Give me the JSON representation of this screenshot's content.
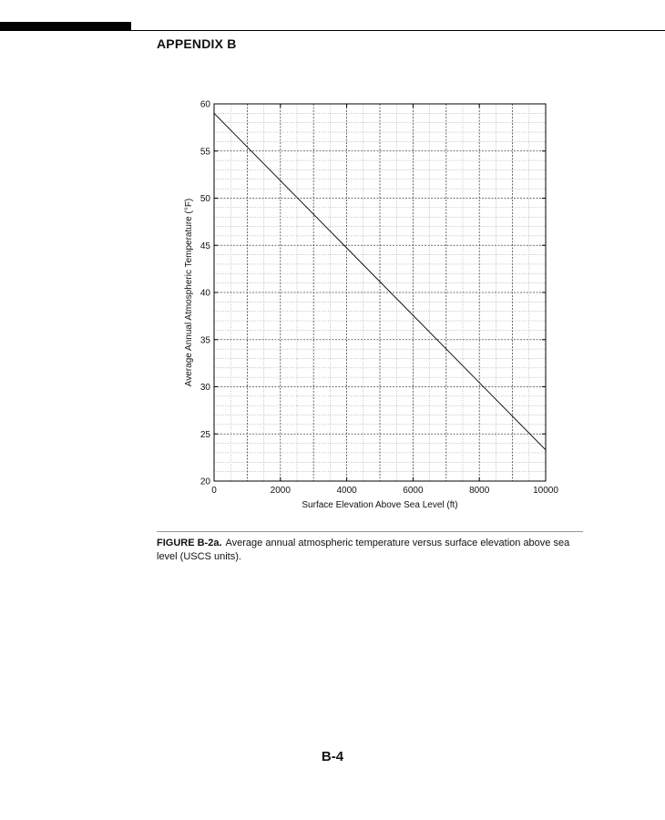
{
  "header": {
    "section_title": "APPENDIX B"
  },
  "chart_data": {
    "type": "line",
    "xlabel": "Surface Elevation Above Sea Level (ft)",
    "ylabel": "Average Annual Atmospheric Temperature (°F)",
    "xlim": [
      0,
      10000
    ],
    "ylim": [
      20,
      60
    ],
    "x_ticks": [
      0,
      2000,
      4000,
      6000,
      8000,
      10000
    ],
    "y_ticks": [
      20,
      25,
      30,
      35,
      40,
      45,
      50,
      55,
      60
    ],
    "x_minor_step": 500,
    "y_minor_step": 1,
    "grid": true,
    "series": [
      {
        "x": [
          0,
          10000
        ],
        "y": [
          59,
          23.3
        ]
      }
    ]
  },
  "caption": {
    "label": "FIGURE B-2a.",
    "text": "Average annual atmospheric temperature versus surface elevation above sea level (USCS units)."
  },
  "footer": {
    "page_number": "B-4"
  }
}
